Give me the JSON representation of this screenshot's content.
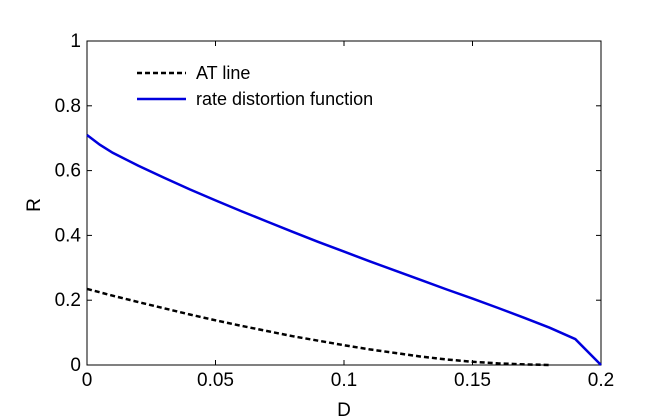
{
  "chart_data": {
    "type": "line",
    "title": "",
    "xlabel": "D",
    "ylabel": "R",
    "xlim": [
      0,
      0.2
    ],
    "ylim": [
      0,
      1
    ],
    "xticks": [
      0,
      0.05,
      0.1,
      0.15,
      0.2
    ],
    "xtick_labels": [
      "0",
      "0.05",
      "0.1",
      "0.15",
      "0.2"
    ],
    "yticks": [
      0,
      0.2,
      0.4,
      0.6,
      0.8,
      1
    ],
    "ytick_labels": [
      "0",
      "0.2",
      "0.4",
      "0.6",
      "0.8",
      "1"
    ],
    "grid": false,
    "legend_position": "top-left",
    "series": [
      {
        "name": "AT line",
        "style": "dashed",
        "color": "#000000",
        "x": [
          0,
          0.01,
          0.02,
          0.03,
          0.04,
          0.05,
          0.06,
          0.07,
          0.08,
          0.09,
          0.1,
          0.11,
          0.12,
          0.13,
          0.14,
          0.15,
          0.16,
          0.17,
          0.18
        ],
        "y": [
          0.235,
          0.214,
          0.194,
          0.175,
          0.156,
          0.138,
          0.121,
          0.105,
          0.089,
          0.075,
          0.061,
          0.048,
          0.037,
          0.026,
          0.017,
          0.01,
          0.005,
          0.002,
          0.0
        ]
      },
      {
        "name": "rate distortion function",
        "style": "solid",
        "color": "#0000dd",
        "x": [
          0,
          0.005,
          0.01,
          0.02,
          0.03,
          0.04,
          0.05,
          0.06,
          0.07,
          0.08,
          0.09,
          0.1,
          0.11,
          0.12,
          0.13,
          0.14,
          0.15,
          0.16,
          0.17,
          0.18,
          0.19,
          0.2
        ],
        "y": [
          0.71,
          0.68,
          0.655,
          0.615,
          0.578,
          0.542,
          0.508,
          0.475,
          0.443,
          0.411,
          0.38,
          0.35,
          0.32,
          0.291,
          0.262,
          0.233,
          0.205,
          0.176,
          0.146,
          0.115,
          0.08,
          0.0
        ]
      }
    ]
  }
}
